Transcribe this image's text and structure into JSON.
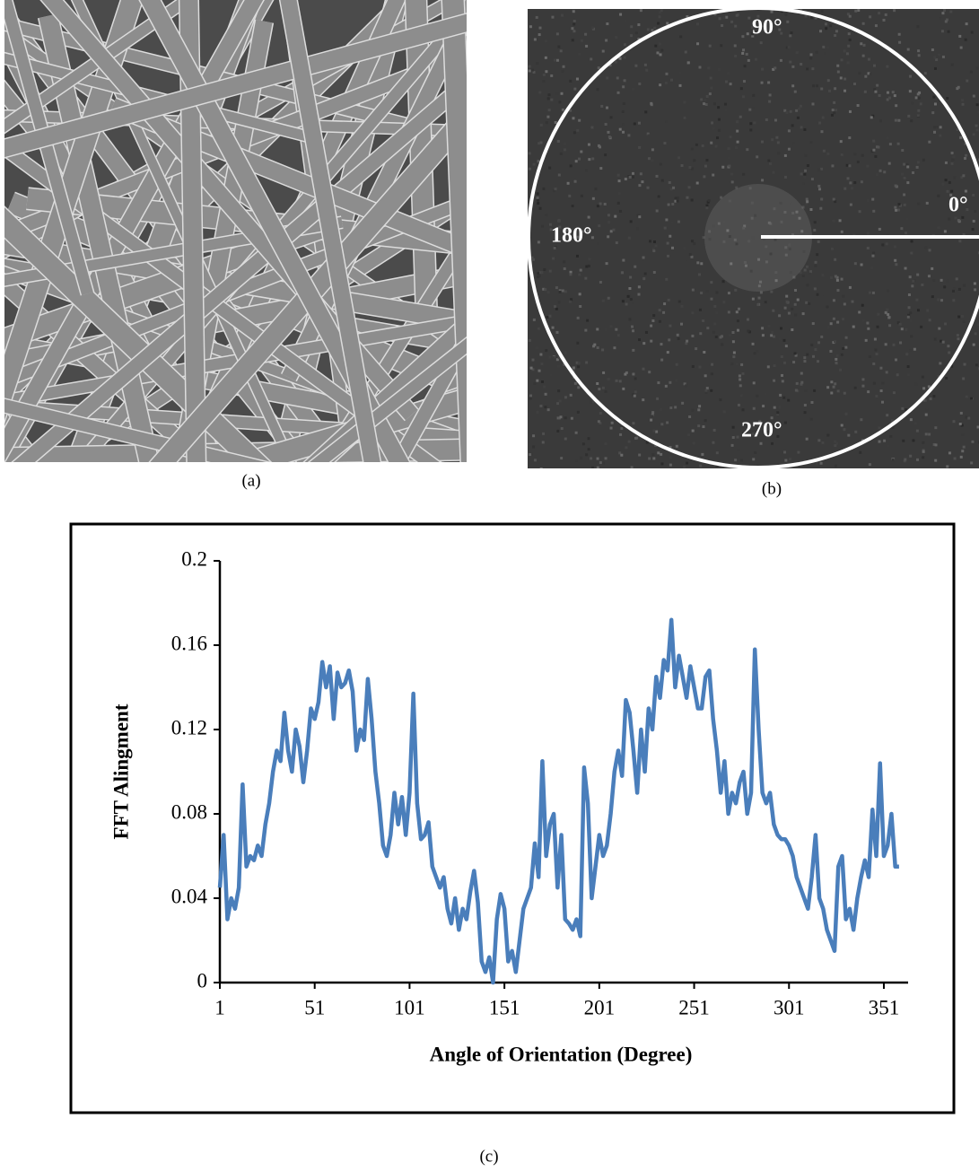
{
  "figure": {
    "panel_labels": [
      "(a)",
      "(b)",
      "(c)"
    ],
    "fft_angles": [
      "90°",
      "0°",
      "180°",
      "270°"
    ]
  },
  "chart_data": {
    "type": "line",
    "x_label": "Angle of  Orientation (Degree)",
    "y_label": "FFT Alingment",
    "xlim": [
      1,
      360
    ],
    "ylim": [
      0,
      0.2
    ],
    "xticks": [
      1,
      51,
      101,
      151,
      201,
      251,
      301,
      351
    ],
    "yticks": [
      0,
      0.04,
      0.08,
      0.12,
      0.16,
      0.2
    ],
    "x": [
      1,
      3,
      5,
      7,
      9,
      11,
      13,
      15,
      17,
      19,
      21,
      23,
      25,
      27,
      29,
      31,
      33,
      35,
      37,
      39,
      41,
      43,
      45,
      47,
      49,
      51,
      53,
      55,
      57,
      59,
      61,
      63,
      65,
      67,
      69,
      71,
      73,
      75,
      77,
      79,
      81,
      83,
      85,
      87,
      89,
      91,
      93,
      95,
      97,
      99,
      101,
      103,
      105,
      107,
      109,
      111,
      113,
      115,
      117,
      119,
      121,
      123,
      125,
      127,
      129,
      131,
      133,
      135,
      137,
      139,
      141,
      143,
      145,
      147,
      149,
      151,
      153,
      155,
      157,
      159,
      161,
      163,
      165,
      167,
      169,
      171,
      173,
      175,
      177,
      179,
      181,
      183,
      185,
      187,
      189,
      191,
      193,
      195,
      197,
      199,
      201,
      203,
      205,
      207,
      209,
      211,
      213,
      215,
      217,
      219,
      221,
      223,
      225,
      227,
      229,
      231,
      233,
      235,
      237,
      239,
      241,
      243,
      245,
      247,
      249,
      251,
      253,
      255,
      257,
      259,
      261,
      263,
      265,
      267,
      269,
      271,
      273,
      275,
      277,
      279,
      281,
      283,
      285,
      287,
      289,
      291,
      293,
      295,
      297,
      299,
      301,
      303,
      305,
      307,
      309,
      311,
      313,
      315,
      317,
      319,
      321,
      323,
      325,
      327,
      329,
      331,
      333,
      335,
      337,
      339,
      341,
      343,
      345,
      347,
      349,
      351,
      353,
      355,
      357,
      359
    ],
    "series": [
      {
        "color": "#4a7ebb",
        "values": [
          0.045,
          0.07,
          0.03,
          0.04,
          0.035,
          0.045,
          0.094,
          0.055,
          0.06,
          0.058,
          0.065,
          0.06,
          0.075,
          0.085,
          0.1,
          0.11,
          0.105,
          0.128,
          0.11,
          0.1,
          0.12,
          0.112,
          0.095,
          0.11,
          0.13,
          0.125,
          0.133,
          0.152,
          0.14,
          0.15,
          0.125,
          0.147,
          0.14,
          0.142,
          0.148,
          0.138,
          0.11,
          0.12,
          0.115,
          0.144,
          0.125,
          0.1,
          0.085,
          0.065,
          0.06,
          0.07,
          0.09,
          0.075,
          0.088,
          0.07,
          0.09,
          0.137,
          0.085,
          0.068,
          0.07,
          0.076,
          0.055,
          0.05,
          0.045,
          0.05,
          0.035,
          0.028,
          0.04,
          0.025,
          0.035,
          0.03,
          0.043,
          0.053,
          0.038,
          0.01,
          0.005,
          0.012,
          0,
          0.03,
          0.042,
          0.035,
          0.01,
          0.015,
          0.005,
          0.02,
          0.035,
          0.04,
          0.045,
          0.066,
          0.05,
          0.105,
          0.06,
          0.075,
          0.08,
          0.045,
          0.07,
          0.03,
          0.028,
          0.025,
          0.03,
          0.022,
          0.102,
          0.085,
          0.04,
          0.055,
          0.07,
          0.06,
          0.065,
          0.08,
          0.1,
          0.11,
          0.098,
          0.134,
          0.128,
          0.11,
          0.09,
          0.12,
          0.1,
          0.13,
          0.12,
          0.145,
          0.135,
          0.153,
          0.148,
          0.172,
          0.14,
          0.155,
          0.145,
          0.135,
          0.15,
          0.14,
          0.13,
          0.13,
          0.145,
          0.148,
          0.125,
          0.11,
          0.09,
          0.105,
          0.08,
          0.09,
          0.085,
          0.095,
          0.1,
          0.08,
          0.09,
          0.158,
          0.12,
          0.09,
          0.085,
          0.09,
          0.075,
          0.07,
          0.068,
          0.068,
          0.065,
          0.06,
          0.05,
          0.045,
          0.04,
          0.035,
          0.05,
          0.07,
          0.04,
          0.035,
          0.025,
          0.02,
          0.015,
          0.055,
          0.06,
          0.03,
          0.035,
          0.025,
          0.04,
          0.05,
          0.058,
          0.05,
          0.082,
          0.06,
          0.104,
          0.06,
          0.065,
          0.08,
          0.055,
          0.055
        ]
      }
    ]
  }
}
